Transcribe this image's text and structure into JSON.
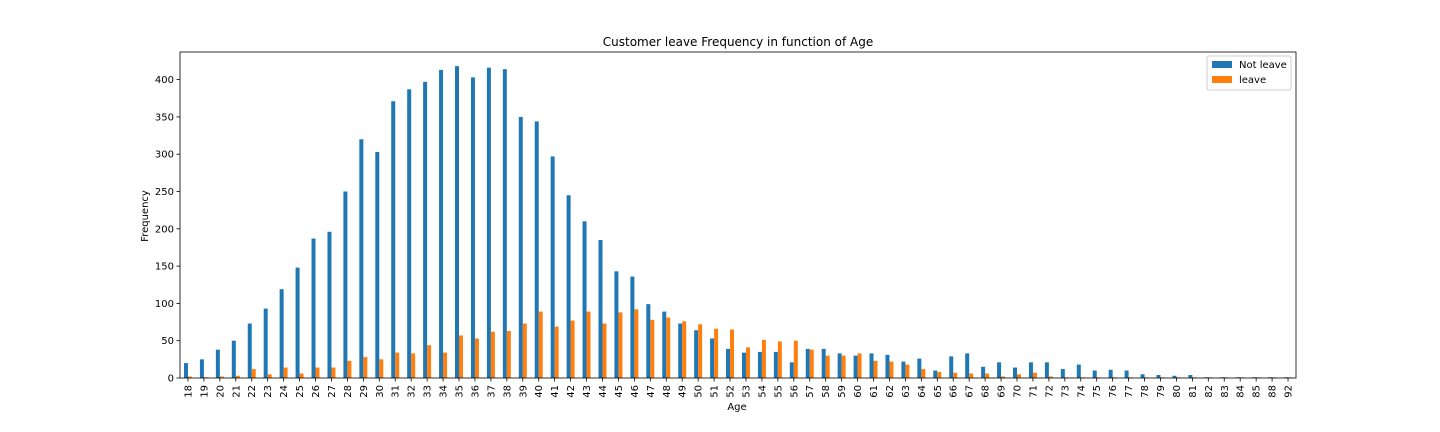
{
  "chart_data": {
    "type": "bar",
    "title": "Customer leave Frequency in function of Age",
    "xlabel": "Age",
    "ylabel": "Frequency",
    "ylim": [
      0,
      437
    ],
    "yticks": [
      0,
      50,
      100,
      150,
      200,
      250,
      300,
      350,
      400
    ],
    "grid": false,
    "legend_position": "top-right",
    "categories": [
      "18",
      "19",
      "20",
      "21",
      "22",
      "23",
      "24",
      "25",
      "26",
      "27",
      "28",
      "29",
      "30",
      "31",
      "32",
      "33",
      "34",
      "35",
      "36",
      "37",
      "38",
      "39",
      "40",
      "41",
      "42",
      "43",
      "44",
      "45",
      "46",
      "47",
      "48",
      "49",
      "50",
      "51",
      "52",
      "53",
      "54",
      "55",
      "56",
      "57",
      "58",
      "59",
      "60",
      "61",
      "62",
      "63",
      "64",
      "65",
      "66",
      "67",
      "68",
      "69",
      "70",
      "71",
      "72",
      "73",
      "74",
      "75",
      "76",
      "77",
      "78",
      "79",
      "80",
      "81",
      "82",
      "83",
      "84",
      "85",
      "88",
      "92"
    ],
    "series": [
      {
        "name": "Not leave",
        "color": "#1f77b4",
        "values": [
          20,
          25,
          38,
          50,
          73,
          93,
          119,
          148,
          187,
          196,
          250,
          320,
          303,
          371,
          387,
          397,
          413,
          418,
          403,
          416,
          414,
          350,
          344,
          297,
          245,
          210,
          185,
          143,
          136,
          99,
          89,
          73,
          64,
          53,
          39,
          34,
          35,
          35,
          21,
          39,
          39,
          33,
          30,
          33,
          31,
          22,
          26,
          10,
          29,
          33,
          15,
          21,
          14,
          21,
          21,
          12,
          18,
          10,
          11,
          10,
          5,
          4,
          3,
          4,
          1,
          1,
          1,
          1,
          1,
          1
        ]
      },
      {
        "name": "leave",
        "color": "#ff7f0e",
        "values": [
          2,
          1,
          2,
          3,
          12,
          5,
          14,
          6,
          14,
          14,
          23,
          28,
          25,
          34,
          33,
          44,
          34,
          57,
          53,
          62,
          63,
          73,
          89,
          69,
          77,
          89,
          73,
          88,
          92,
          78,
          81,
          76,
          72,
          66,
          65,
          41,
          51,
          49,
          50,
          38,
          30,
          30,
          33,
          23,
          22,
          18,
          12,
          8,
          7,
          6,
          6,
          2,
          5,
          7,
          2,
          1,
          1,
          1,
          1,
          1,
          1,
          1,
          1,
          1,
          1,
          1,
          1,
          1,
          1,
          1
        ]
      }
    ]
  }
}
